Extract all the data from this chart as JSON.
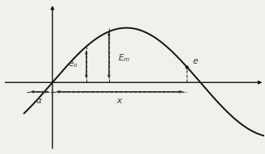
{
  "background_color": "#f2f0eb",
  "sine_color": "#111111",
  "axis_color": "#111111",
  "dashed_color": "#333333",
  "figsize": [
    3.28,
    1.91
  ],
  "dpi": 100,
  "x_range": [
    -1.1,
    4.5
  ],
  "y_range": [
    -1.3,
    1.5
  ],
  "Em": 1.0,
  "scale": 1.0,
  "alpha_rad": 0.55,
  "x_meas_rad": 2.85,
  "x_eo_rad": 0.72,
  "x_em_rad": 1.2
}
